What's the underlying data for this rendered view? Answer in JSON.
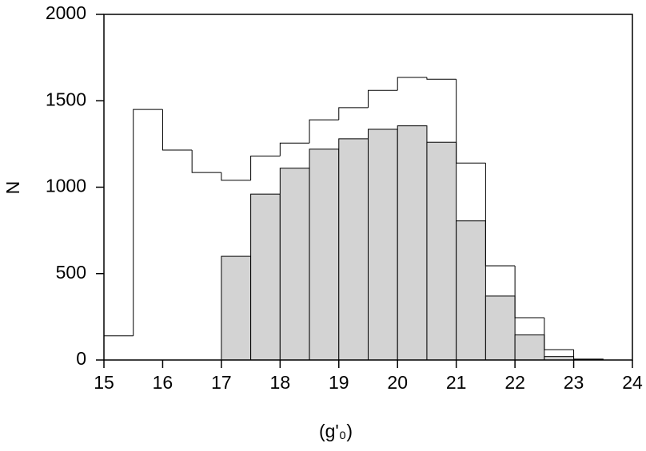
{
  "chart_data": {
    "type": "histogram",
    "x_label": "(g'₀)",
    "y_label": "N",
    "bins": [
      15,
      15.5,
      16,
      16.5,
      17,
      17.5,
      18,
      18.5,
      19,
      19.5,
      20,
      20.5,
      21,
      21.5,
      22,
      22.5,
      23,
      23.5
    ],
    "series": [
      {
        "color": "#000000",
        "style": "step",
        "values": [
          140,
          1450,
          1215,
          1085,
          1040,
          1180,
          1255,
          1390,
          1460,
          1560,
          1635,
          1625,
          1140,
          545,
          245,
          60,
          5
        ]
      },
      {
        "color": "#d3d3d3",
        "style": "filled",
        "values": [
          0,
          0,
          0,
          0,
          600,
          960,
          1110,
          1220,
          1280,
          1335,
          1355,
          1260,
          805,
          370,
          145,
          20,
          3
        ]
      }
    ],
    "xlim": [
      15,
      24
    ],
    "xticks": [
      15,
      16,
      17,
      18,
      19,
      20,
      21,
      22,
      23,
      24
    ],
    "ylim": [
      0,
      2000
    ],
    "yticks": [
      0,
      500,
      1000,
      1500,
      2000
    ]
  }
}
